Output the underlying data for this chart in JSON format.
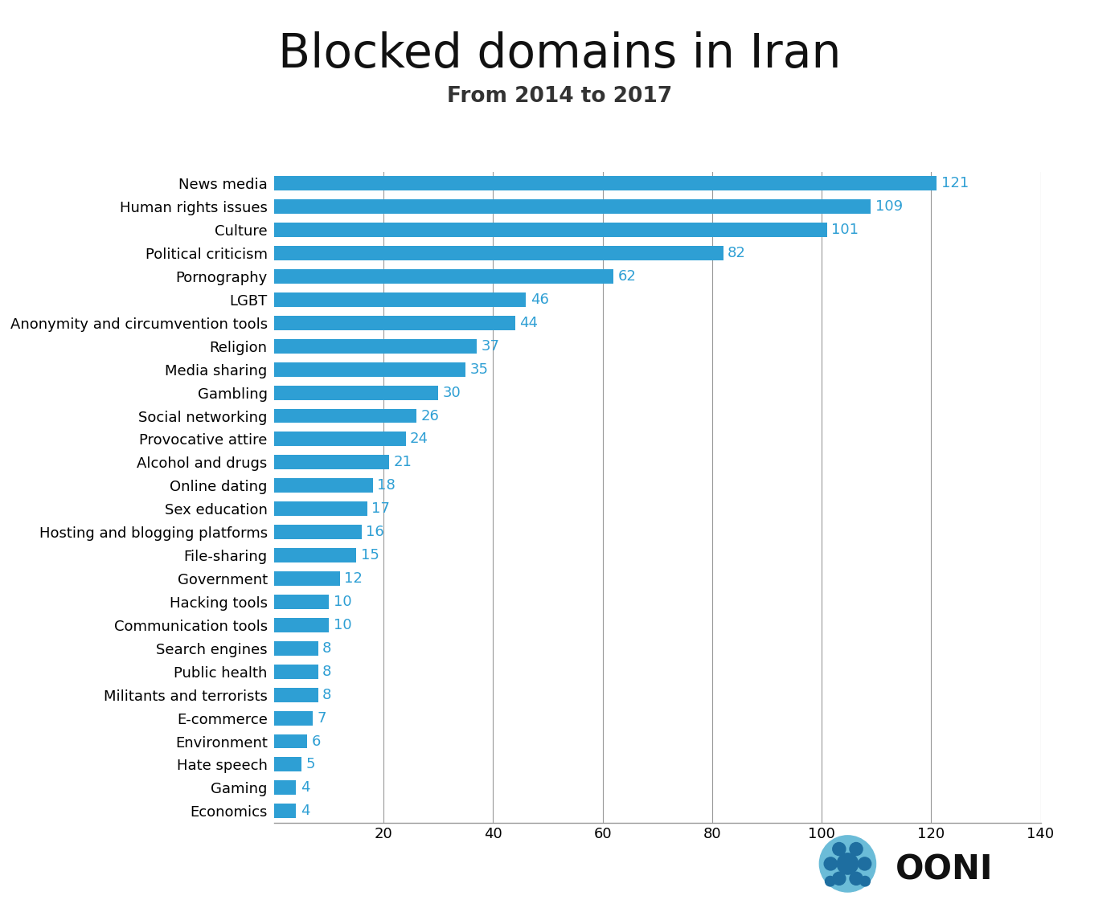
{
  "title": "Blocked domains in Iran",
  "subtitle": "From 2014 to 2017",
  "categories": [
    "News media",
    "Human rights issues",
    "Culture",
    "Political criticism",
    "Pornography",
    "LGBT",
    "Anonymity and circumvention tools",
    "Religion",
    "Media sharing",
    "Gambling",
    "Social networking",
    "Provocative attire",
    "Alcohol and drugs",
    "Online dating",
    "Sex education",
    "Hosting and blogging platforms",
    "File-sharing",
    "Government",
    "Hacking tools",
    "Communication tools",
    "Search engines",
    "Public health",
    "Militants and terrorists",
    "E-commerce",
    "Environment",
    "Hate speech",
    "Gaming",
    "Economics"
  ],
  "values": [
    121,
    109,
    101,
    82,
    62,
    46,
    44,
    37,
    35,
    30,
    26,
    24,
    21,
    18,
    17,
    16,
    15,
    12,
    10,
    10,
    8,
    8,
    8,
    7,
    6,
    5,
    4,
    4
  ],
  "bar_color": "#2e9fd4",
  "label_color": "#2e9fd4",
  "title_fontsize": 42,
  "subtitle_fontsize": 19,
  "background_color": "#ffffff",
  "xlim": [
    0,
    140
  ],
  "xticks": [
    20,
    40,
    60,
    80,
    100,
    120,
    140
  ],
  "grid_color": "#999999",
  "axis_label_fontsize": 13,
  "category_fontsize": 13,
  "value_fontsize": 13,
  "bar_height": 0.62
}
